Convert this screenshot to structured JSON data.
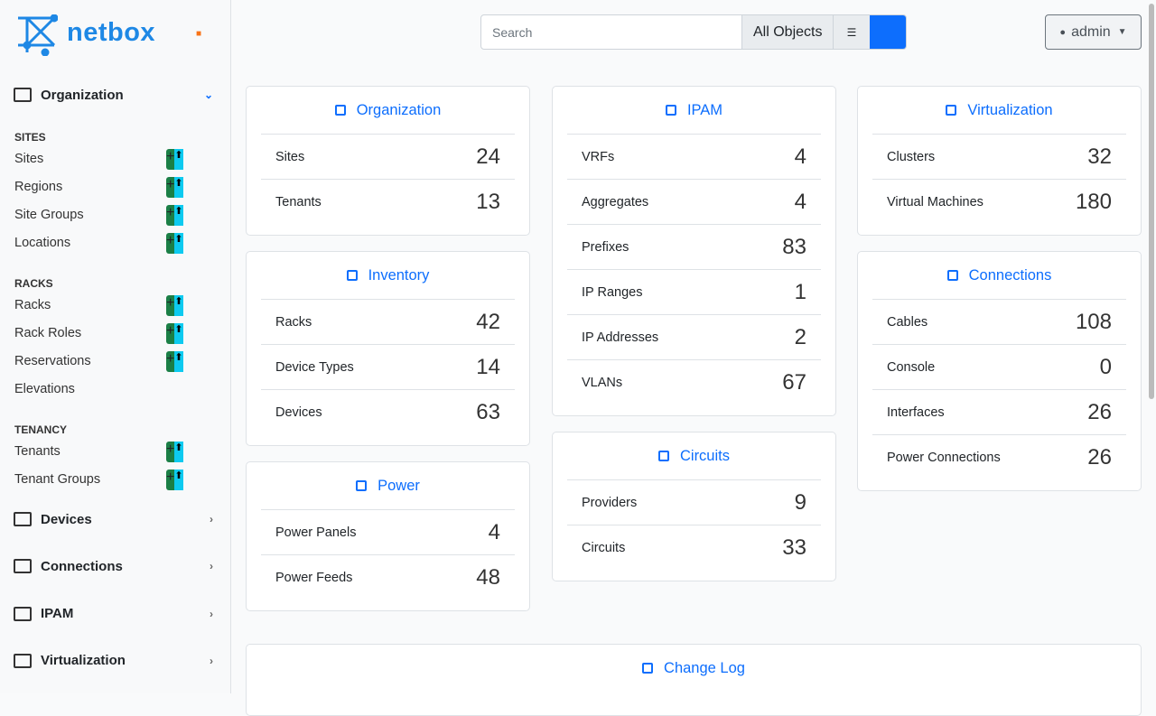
{
  "brand": "netbox",
  "sidebar": {
    "organization": {
      "label": "Organization",
      "groups": [
        {
          "heading": "SITES",
          "items": [
            "Sites",
            "Regions",
            "Site Groups",
            "Locations"
          ]
        },
        {
          "heading": "RACKS",
          "items": [
            "Racks",
            "Rack Roles",
            "Reservations",
            "Elevations"
          ]
        },
        {
          "heading": "TENANCY",
          "items": [
            "Tenants",
            "Tenant Groups"
          ]
        }
      ]
    },
    "menus": [
      "Devices",
      "Connections",
      "IPAM",
      "Virtualization"
    ]
  },
  "search": {
    "placeholder": "Search",
    "scope": "All Objects"
  },
  "user": "admin",
  "columns": [
    [
      {
        "title": "Organization",
        "rows": [
          {
            "label": "Sites",
            "count": 24
          },
          {
            "label": "Tenants",
            "count": 13
          }
        ]
      },
      {
        "title": "Inventory",
        "rows": [
          {
            "label": "Racks",
            "count": 42
          },
          {
            "label": "Device Types",
            "count": 14
          },
          {
            "label": "Devices",
            "count": 63
          }
        ]
      },
      {
        "title": "Power",
        "rows": [
          {
            "label": "Power Panels",
            "count": 4
          },
          {
            "label": "Power Feeds",
            "count": 48
          }
        ]
      }
    ],
    [
      {
        "title": "IPAM",
        "rows": [
          {
            "label": "VRFs",
            "count": 4
          },
          {
            "label": "Aggregates",
            "count": 4
          },
          {
            "label": "Prefixes",
            "count": 83
          },
          {
            "label": "IP Ranges",
            "count": 1
          },
          {
            "label": "IP Addresses",
            "count": 2
          },
          {
            "label": "VLANs",
            "count": 67
          }
        ]
      },
      {
        "title": "Circuits",
        "rows": [
          {
            "label": "Providers",
            "count": 9
          },
          {
            "label": "Circuits",
            "count": 33
          }
        ]
      }
    ],
    [
      {
        "title": "Virtualization",
        "rows": [
          {
            "label": "Clusters",
            "count": 32
          },
          {
            "label": "Virtual Machines",
            "count": 180
          }
        ]
      },
      {
        "title": "Connections",
        "rows": [
          {
            "label": "Cables",
            "count": 108
          },
          {
            "label": "Console",
            "count": 0
          },
          {
            "label": "Interfaces",
            "count": 26
          },
          {
            "label": "Power Connections",
            "count": 26
          }
        ]
      }
    ]
  ],
  "changelog": {
    "title": "Change Log"
  }
}
